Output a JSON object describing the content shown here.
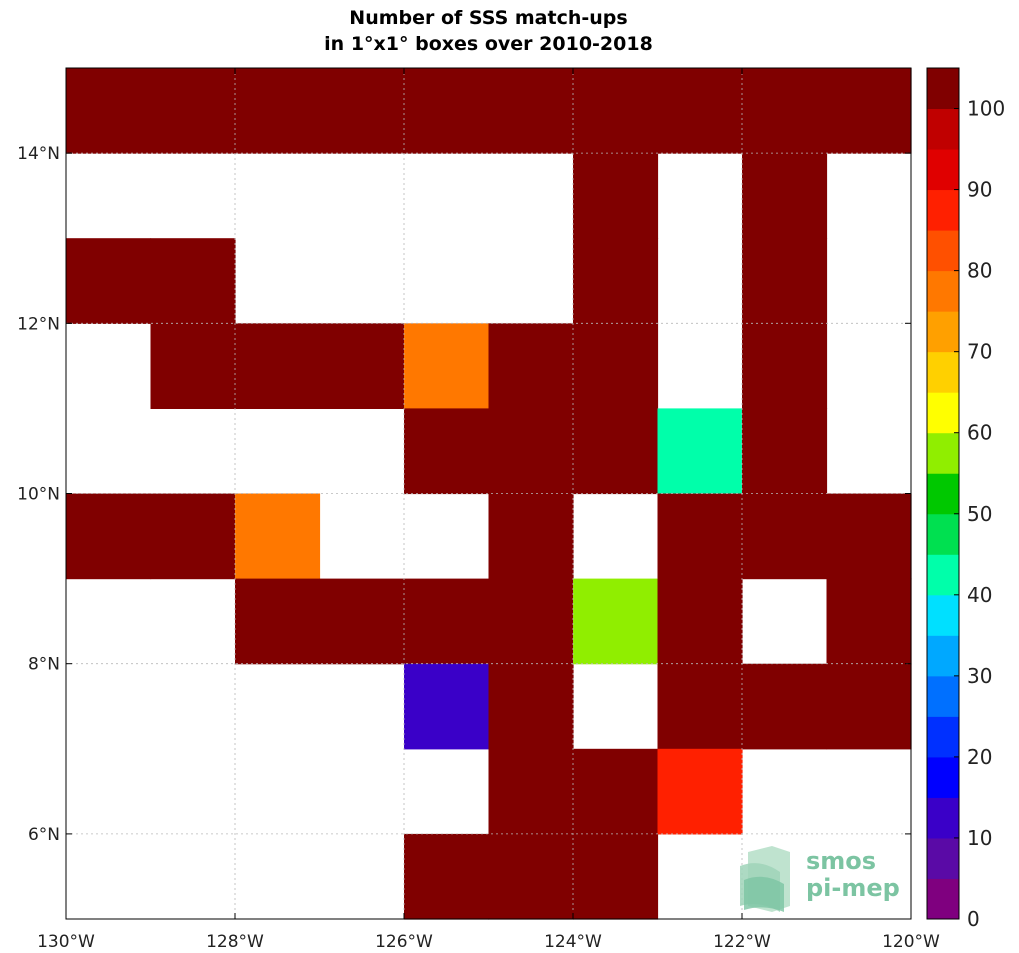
{
  "chart_data": {
    "type": "heatmap",
    "title_line1": "Number of SSS match-ups",
    "title_line2": "in 1°x1° boxes over 2010-2018",
    "xlabel": "",
    "ylabel": "",
    "xlim": [
      -130,
      -120
    ],
    "ylim": [
      5,
      15
    ],
    "grid": true,
    "x_ticks": [
      {
        "value": -130,
        "label": "130°W"
      },
      {
        "value": -128,
        "label": "128°W"
      },
      {
        "value": -126,
        "label": "126°W"
      },
      {
        "value": -124,
        "label": "124°W"
      },
      {
        "value": -122,
        "label": "122°W"
      },
      {
        "value": -120,
        "label": "120°W"
      }
    ],
    "y_ticks": [
      {
        "value": 6,
        "label": "6°N"
      },
      {
        "value": 8,
        "label": "8°N"
      },
      {
        "value": 10,
        "label": "10°N"
      },
      {
        "value": 12,
        "label": "12°N"
      },
      {
        "value": 14,
        "label": "14°N"
      }
    ],
    "colorbar": {
      "min": 0,
      "max": 100,
      "step": 5,
      "tick_labels": [
        "0",
        "10",
        "20",
        "30",
        "40",
        "50",
        "60",
        "70",
        "80",
        "90",
        "100"
      ],
      "colors": [
        "#7f007f",
        "#5a0aa6",
        "#3a00c8",
        "#0000ff",
        "#0030ff",
        "#0070ff",
        "#00a8ff",
        "#00e0ff",
        "#00ffaa",
        "#00e050",
        "#00c800",
        "#90ee00",
        "#ffff00",
        "#ffd000",
        "#ffa000",
        "#ff7800",
        "#ff5000",
        "#ff2000",
        "#e00000",
        "#c00000",
        "#800000"
      ]
    },
    "rows_lat_south_edge": [
      14,
      13,
      12,
      11,
      10,
      9,
      8,
      7,
      6,
      5
    ],
    "cols_lon_west_edge": [
      -130,
      -129,
      -128,
      -127,
      -126,
      -125,
      -124,
      -123,
      -122,
      -121
    ],
    "values": [
      [
        100,
        100,
        100,
        100,
        100,
        100,
        100,
        100,
        100,
        100
      ],
      [
        null,
        null,
        null,
        null,
        null,
        null,
        100,
        null,
        100,
        null
      ],
      [
        100,
        100,
        null,
        null,
        null,
        null,
        100,
        null,
        100,
        null
      ],
      [
        null,
        100,
        100,
        100,
        78,
        100,
        100,
        null,
        100,
        null
      ],
      [
        null,
        null,
        null,
        null,
        100,
        100,
        100,
        42,
        100,
        null
      ],
      [
        100,
        100,
        78,
        null,
        null,
        100,
        null,
        100,
        100,
        100
      ],
      [
        null,
        null,
        100,
        100,
        100,
        100,
        58,
        100,
        null,
        100
      ],
      [
        null,
        null,
        null,
        null,
        12,
        100,
        null,
        100,
        100,
        100
      ],
      [
        null,
        null,
        null,
        null,
        null,
        100,
        100,
        85,
        null,
        null
      ],
      [
        null,
        null,
        null,
        null,
        100,
        100,
        100,
        null,
        null,
        null
      ]
    ]
  },
  "logo": {
    "line1": "smos",
    "line2": "pi-mep"
  }
}
